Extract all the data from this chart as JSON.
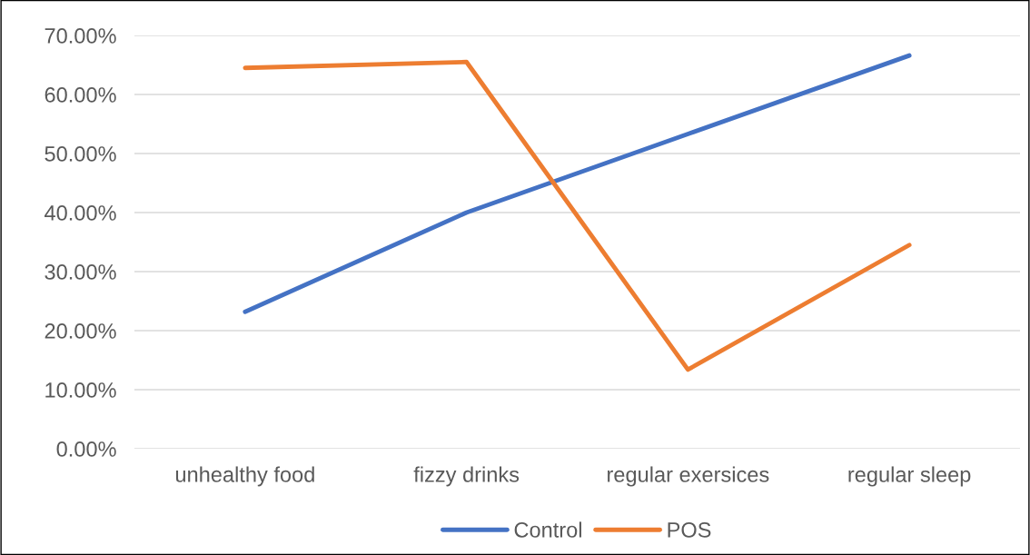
{
  "chart_data": {
    "type": "line",
    "categories": [
      "unhealthy food",
      "fizzy drinks",
      "regular exersices",
      "regular sleep"
    ],
    "series": [
      {
        "name": "Control",
        "color": "#4472c4",
        "values": [
          23.2,
          40.0,
          53.3,
          66.6
        ]
      },
      {
        "name": "POS",
        "color": "#ed7d31",
        "values": [
          64.5,
          65.5,
          13.4,
          34.5
        ]
      }
    ],
    "ylim": [
      0,
      70
    ],
    "yticks": [
      {
        "value": 0,
        "label": "0.00%"
      },
      {
        "value": 10,
        "label": "10.00%"
      },
      {
        "value": 20,
        "label": "20.00%"
      },
      {
        "value": 30,
        "label": "30.00%"
      },
      {
        "value": 40,
        "label": "40.00%"
      },
      {
        "value": 50,
        "label": "50.00%"
      },
      {
        "value": 60,
        "label": "60.00%"
      },
      {
        "value": 70,
        "label": "70.00%"
      }
    ],
    "grid": "y",
    "legend": "bottom",
    "marker": "none",
    "line_style": "solid"
  }
}
